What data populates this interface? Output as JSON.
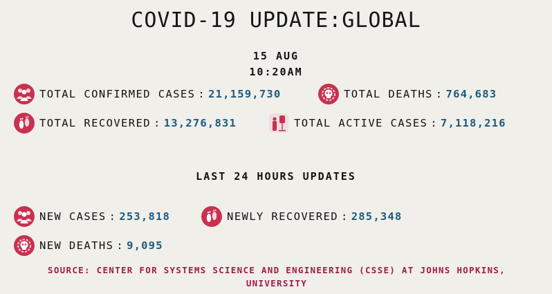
{
  "title": "COVID-19 UPDATE:GLOBAL",
  "date": "15 AUG",
  "time": "10:20AM",
  "separator": ":",
  "stats": {
    "confirmed": {
      "label": "TOTAL CONFIRMED CASES",
      "value": "21,159,730",
      "icon": "people-group-icon"
    },
    "deaths": {
      "label": "TOTAL DEATHS",
      "value": "764,683",
      "icon": "skull-virus-icon"
    },
    "recovered": {
      "label": "TOTAL RECOVERED",
      "value": "13,276,831",
      "icon": "footprints-icon"
    },
    "active": {
      "label": "TOTAL ACTIVE CASES",
      "value": "7,118,216",
      "icon": "patient-iv-icon"
    }
  },
  "last24": {
    "heading": "LAST 24 HOURS UPDATES",
    "new_cases": {
      "label": "NEW CASES",
      "value": "253,818",
      "icon": "people-group-icon"
    },
    "newly_recovered": {
      "label": "NEWLY RECOVERED",
      "value": "285,348",
      "icon": "footprints-icon"
    },
    "new_deaths": {
      "label": "NEW DEATHS",
      "value": "9,095",
      "icon": "skull-virus-icon"
    }
  },
  "source": "SOURCE: CENTER FOR SYSTEMS SCIENCE AND ENGINEERING (CSSE) AT JOHNS HOPKINS, UNIVERSITY",
  "colors": {
    "background": "#f0efe9",
    "value": "#1b5a80",
    "icon": "#c8314f",
    "source": "#a11a4a"
  }
}
